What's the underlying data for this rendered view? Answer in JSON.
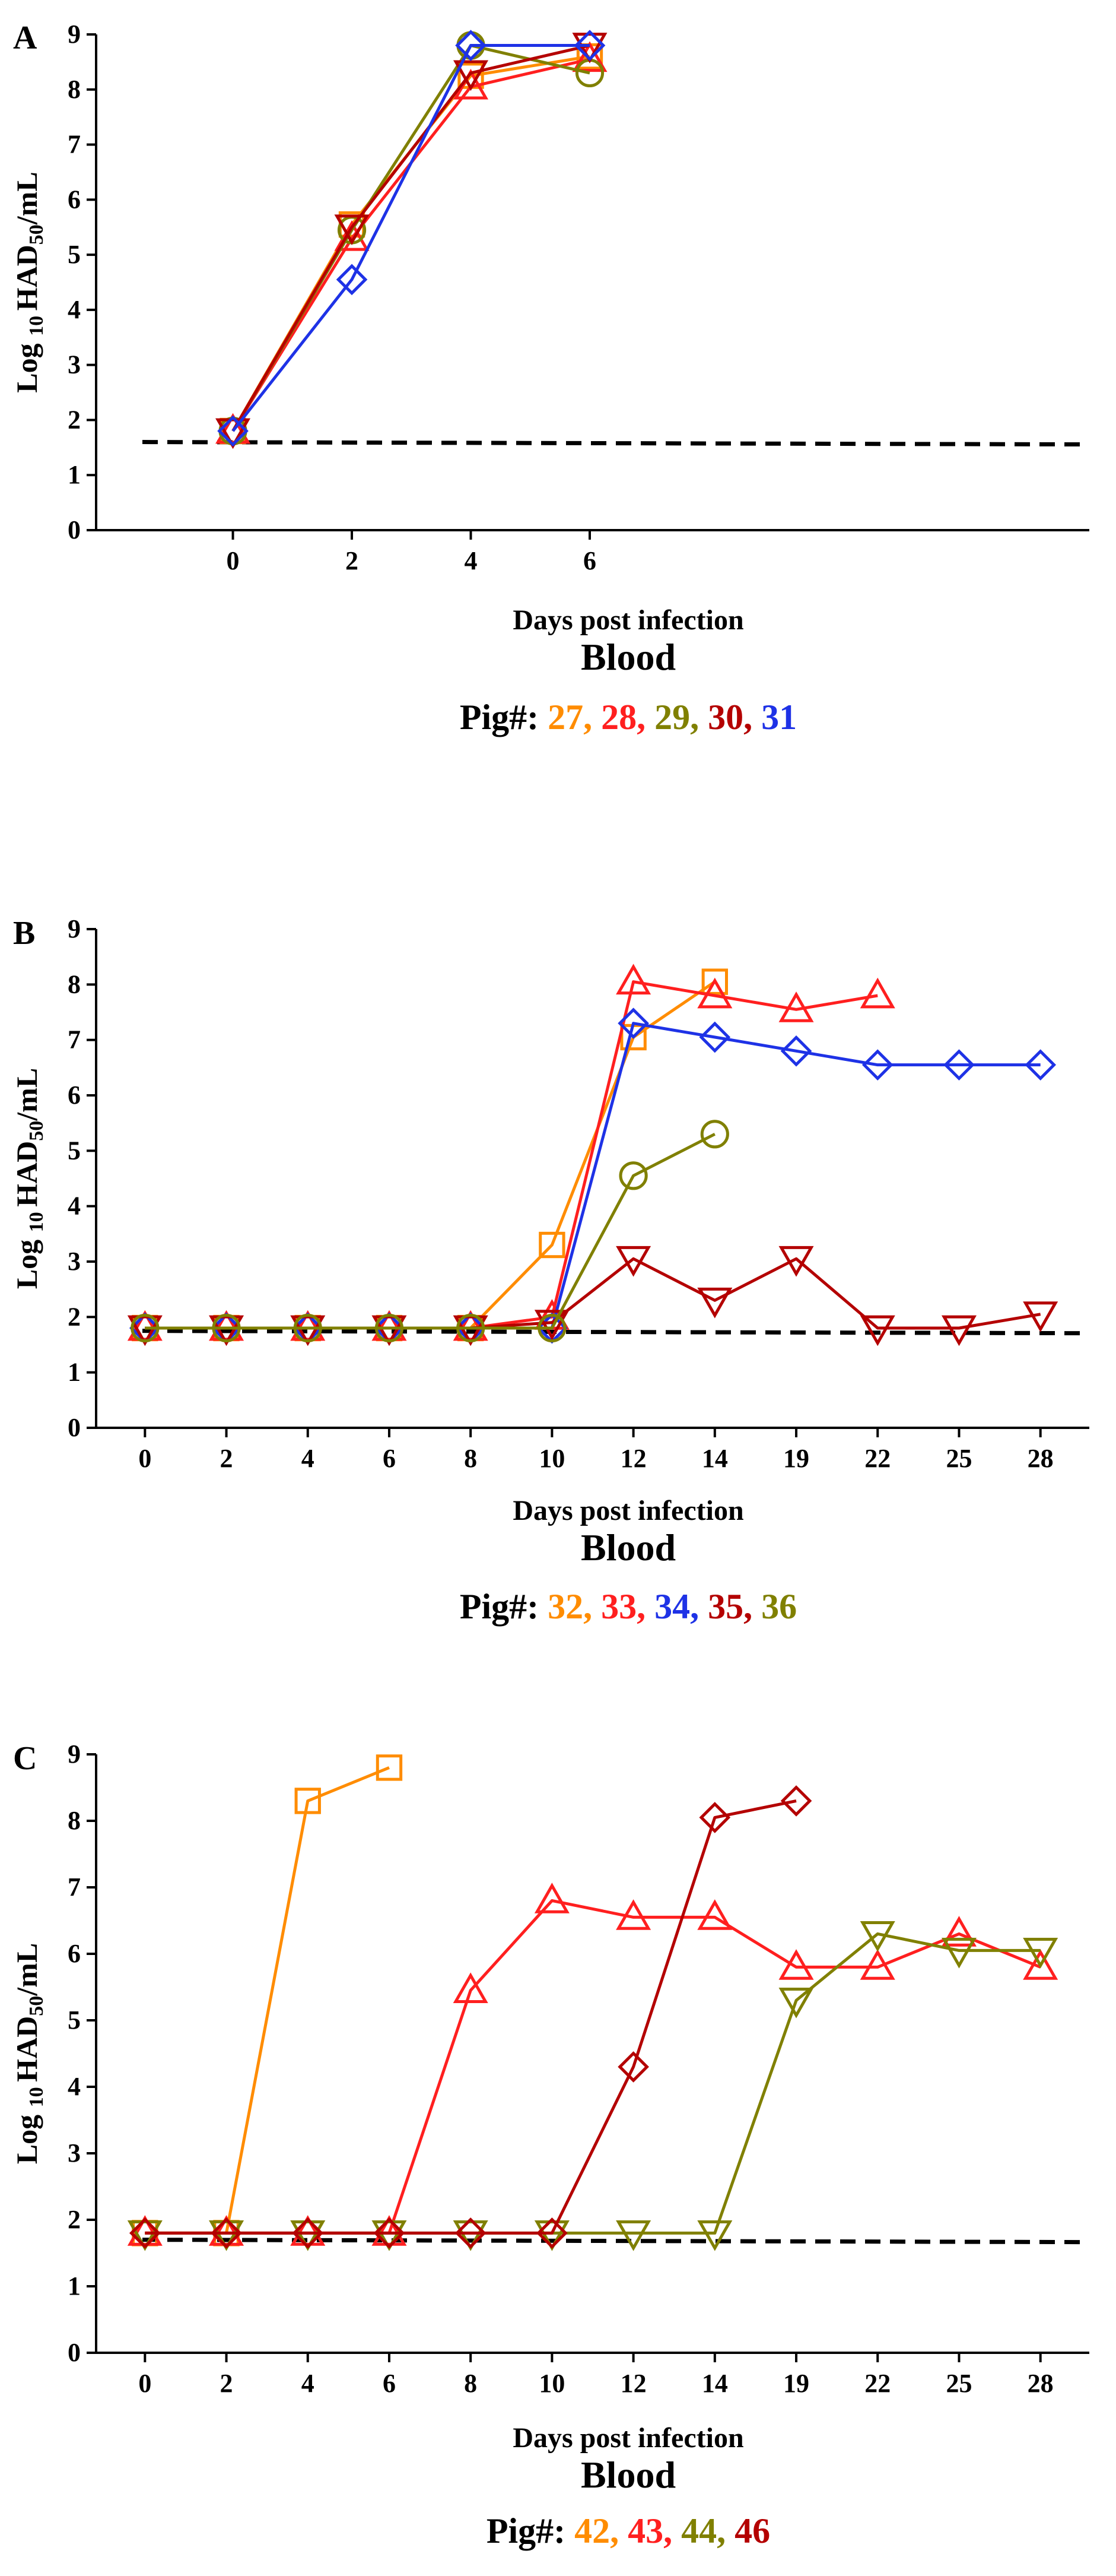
{
  "chart_data": [
    {
      "type": "line",
      "panel_label": "A",
      "title": "Blood",
      "xlabel": "Days post infection",
      "ylabel": "Log 10 HAD50/mL",
      "ylim": [
        0,
        9
      ],
      "yticks": [
        "0",
        "1",
        "2",
        "3",
        "4",
        "5",
        "6",
        "7",
        "8",
        "9"
      ],
      "categories": [
        "0",
        "2",
        "4",
        "6"
      ],
      "xlim_index": [
        -1.15,
        7.2
      ],
      "reference_line": {
        "y": 1.6,
        "style": "dashed",
        "color": "#000000"
      },
      "legend_prefix": "Pig#:",
      "series": [
        {
          "name": "27",
          "color": "#FF8C00",
          "marker": "square",
          "values": [
            1.8,
            5.55,
            8.25,
            8.6
          ]
        },
        {
          "name": "28",
          "color": "#FF1F1F",
          "marker": "triangle-up",
          "values": [
            1.8,
            5.3,
            8.05,
            8.55
          ]
        },
        {
          "name": "29",
          "color": "#808000",
          "marker": "circle",
          "values": [
            1.8,
            5.45,
            8.8,
            8.3
          ]
        },
        {
          "name": "30",
          "color": "#B40000",
          "marker": "triangle-down",
          "values": [
            1.8,
            5.5,
            8.3,
            8.8
          ]
        },
        {
          "name": "31",
          "color": "#1E32E6",
          "marker": "diamond",
          "values": [
            1.8,
            4.55,
            8.8,
            8.8
          ]
        }
      ]
    },
    {
      "type": "line",
      "panel_label": "B",
      "title": "Blood",
      "xlabel": "Days post infection",
      "ylabel": "Log 10 HAD50/mL",
      "ylim": [
        0,
        9
      ],
      "yticks": [
        "0",
        "1",
        "2",
        "3",
        "4",
        "5",
        "6",
        "7",
        "8",
        "9"
      ],
      "categories": [
        "0",
        "2",
        "4",
        "6",
        "8",
        "10",
        "12",
        "14",
        "19",
        "22",
        "25",
        "28"
      ],
      "xlim_index": [
        -0.6,
        11.6
      ],
      "reference_line": {
        "y": 1.75,
        "style": "dashed",
        "color": "#000000"
      },
      "legend_prefix": "Pig#:",
      "series": [
        {
          "name": "32",
          "color": "#FF8C00",
          "marker": "square",
          "values": [
            1.8,
            1.8,
            1.8,
            1.8,
            1.8,
            3.3,
            7.05,
            8.05,
            null,
            null,
            null,
            null
          ]
        },
        {
          "name": "33",
          "color": "#FF1F1F",
          "marker": "triangle-up",
          "values": [
            1.8,
            1.8,
            1.8,
            1.8,
            1.8,
            2.0,
            8.05,
            7.8,
            7.55,
            7.8,
            null,
            null
          ]
        },
        {
          "name": "34",
          "color": "#1E32E6",
          "marker": "diamond",
          "values": [
            1.8,
            1.8,
            1.8,
            1.8,
            1.8,
            1.8,
            7.3,
            7.05,
            6.8,
            6.55,
            6.55,
            6.55
          ]
        },
        {
          "name": "35",
          "color": "#B40000",
          "marker": "triangle-down",
          "values": [
            1.8,
            1.8,
            1.8,
            1.8,
            1.8,
            1.9,
            3.05,
            2.3,
            3.05,
            1.8,
            1.8,
            2.05
          ]
        },
        {
          "name": "36",
          "color": "#808000",
          "marker": "circle",
          "values": [
            1.8,
            1.8,
            1.8,
            1.8,
            1.8,
            1.8,
            4.55,
            5.3,
            null,
            null,
            null,
            null
          ]
        }
      ]
    },
    {
      "type": "line",
      "panel_label": "C",
      "title": "Blood",
      "xlabel": "Days post infection",
      "ylabel": "Log 10 HAD50/mL",
      "ylim": [
        0,
        9
      ],
      "yticks": [
        "0",
        "1",
        "2",
        "3",
        "4",
        "5",
        "6",
        "7",
        "8",
        "9"
      ],
      "categories": [
        "0",
        "2",
        "4",
        "6",
        "8",
        "10",
        "12",
        "14",
        "19",
        "22",
        "25",
        "28"
      ],
      "xlim_index": [
        -0.6,
        11.6
      ],
      "reference_line": {
        "y": 1.7,
        "style": "dashed",
        "color": "#000000"
      },
      "legend_prefix": "Pig#:",
      "series": [
        {
          "name": "42",
          "color": "#FF8C00",
          "marker": "square",
          "values": [
            1.8,
            1.8,
            8.3,
            8.8,
            null,
            null,
            null,
            null,
            null,
            null,
            null,
            null
          ]
        },
        {
          "name": "43",
          "color": "#FF1F1F",
          "marker": "triangle-up",
          "values": [
            1.8,
            1.8,
            1.8,
            1.8,
            5.45,
            6.8,
            6.55,
            6.55,
            5.8,
            5.8,
            6.3,
            5.8
          ]
        },
        {
          "name": "44",
          "color": "#808000",
          "marker": "triangle-down",
          "values": [
            1.8,
            1.8,
            1.8,
            1.8,
            1.8,
            1.8,
            1.8,
            1.8,
            5.3,
            6.3,
            6.05,
            6.05
          ]
        },
        {
          "name": "46",
          "color": "#B40000",
          "marker": "diamond",
          "values": [
            1.8,
            1.8,
            1.8,
            1.8,
            1.8,
            1.8,
            4.3,
            8.05,
            8.3,
            null,
            null,
            null
          ]
        }
      ]
    }
  ]
}
